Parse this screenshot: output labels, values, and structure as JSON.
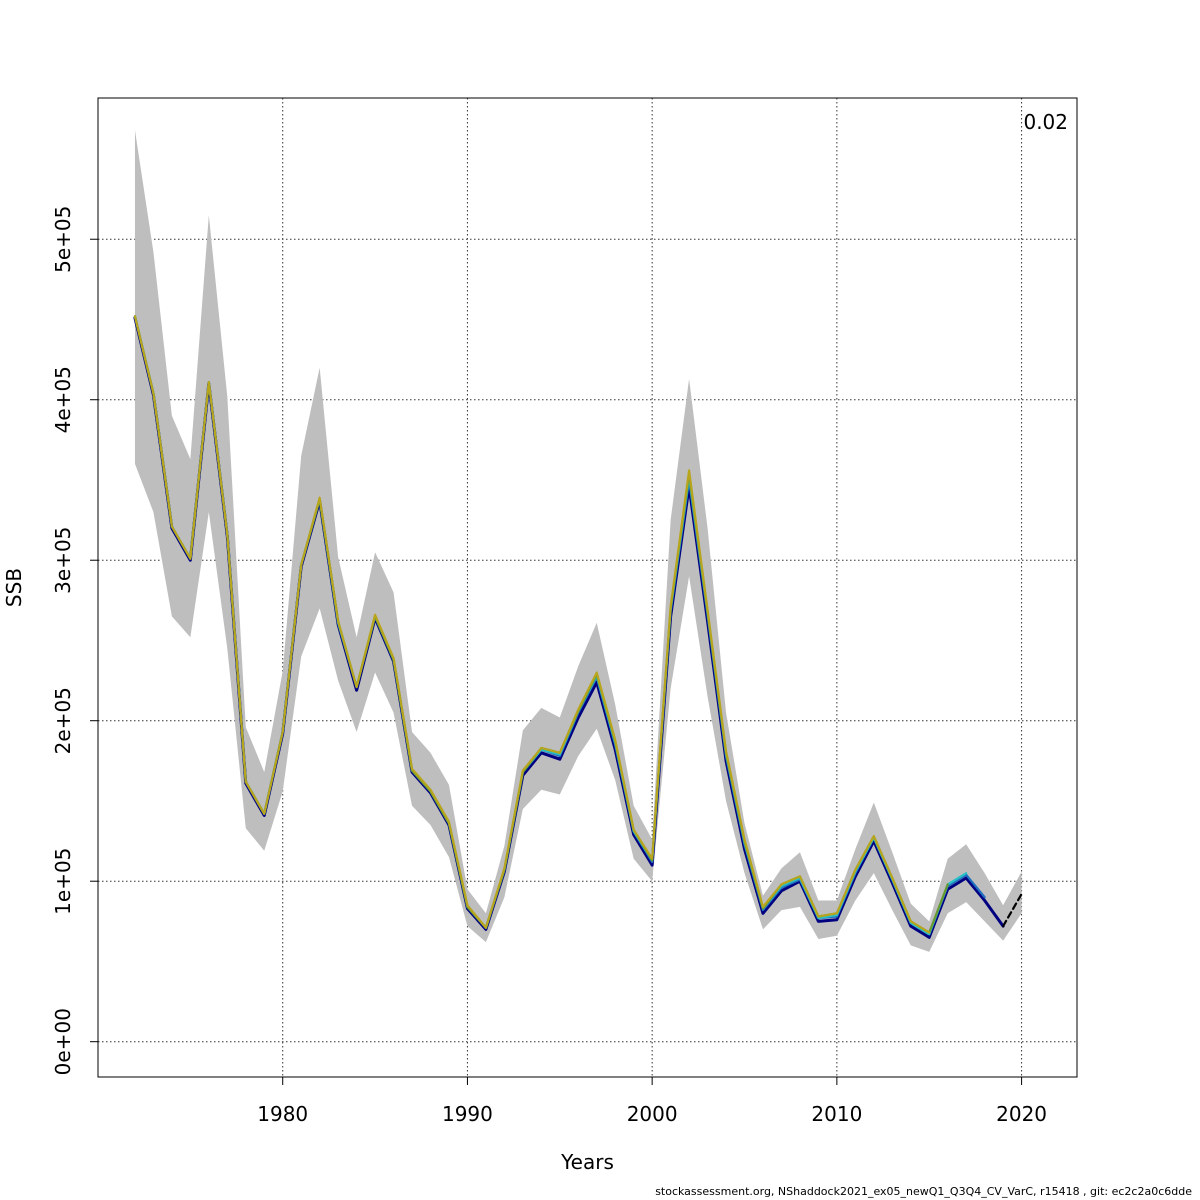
{
  "footer_text": "stockassessment.org, NShaddock2021_ex05_newQ1_Q3Q4_CV_VarC, r15418 , git: ec2c2a0c6dde",
  "chart_data": {
    "type": "line",
    "title": "",
    "xlabel": "Years",
    "ylabel": "SSB",
    "corner_label": "0.02",
    "xlim": [
      1970,
      2023
    ],
    "ylim": [
      -22000,
      588000
    ],
    "x_ticks": [
      1980,
      1990,
      2000,
      2010,
      2020
    ],
    "x_tick_labels": [
      "1980",
      "1990",
      "2000",
      "2010",
      "2020"
    ],
    "y_ticks": [
      0,
      100000,
      200000,
      300000,
      400000,
      500000
    ],
    "y_tick_labels": [
      "0e+00",
      "1e+05",
      "2e+05",
      "3e+05",
      "4e+05",
      "5e+05"
    ],
    "grid": true,
    "colors": {
      "band": "#bebebe",
      "main": "#000080",
      "retro": [
        "#1f6fc0",
        "#29c1c7",
        "#6a9a2f",
        "#b8a51e"
      ],
      "projection": "#000000"
    },
    "x": [
      1972,
      1973,
      1974,
      1975,
      1976,
      1977,
      1978,
      1979,
      1980,
      1981,
      1982,
      1983,
      1984,
      1985,
      1986,
      1987,
      1988,
      1989,
      1990,
      1991,
      1992,
      1993,
      1994,
      1995,
      1996,
      1997,
      1998,
      1999,
      2000,
      2001,
      2002,
      2003,
      2004,
      2005,
      2006,
      2007,
      2008,
      2009,
      2010,
      2011,
      2012,
      2013,
      2014,
      2015,
      2016,
      2017,
      2018,
      2019
    ],
    "ssb": [
      451000,
      403000,
      320000,
      300000,
      410000,
      315000,
      161000,
      141000,
      192000,
      296000,
      337000,
      260000,
      219000,
      264000,
      237000,
      168000,
      155000,
      135000,
      83000,
      70000,
      106000,
      166000,
      180000,
      176000,
      202000,
      224000,
      182000,
      129000,
      110000,
      265000,
      346000,
      262000,
      175000,
      120000,
      80000,
      94000,
      100000,
      75000,
      76000,
      103000,
      125000,
      99000,
      72000,
      65000,
      95000,
      102000,
      88000,
      72000
    ],
    "lower": [
      360000,
      330000,
      265000,
      252000,
      330000,
      245000,
      133000,
      119000,
      156000,
      240000,
      270000,
      225000,
      193000,
      230000,
      205000,
      147000,
      135000,
      115000,
      72000,
      62000,
      90000,
      145000,
      157000,
      154000,
      178000,
      195000,
      163000,
      114000,
      100000,
      220000,
      290000,
      215000,
      150000,
      105000,
      70000,
      82000,
      84000,
      64000,
      66000,
      88000,
      105000,
      82000,
      60000,
      56000,
      80000,
      87000,
      75000,
      63000
    ],
    "upper": [
      568000,
      492000,
      390000,
      363000,
      515000,
      402000,
      196000,
      168000,
      231000,
      365000,
      420000,
      302000,
      252000,
      305000,
      280000,
      193000,
      180000,
      160000,
      95000,
      80000,
      122000,
      194000,
      208000,
      202000,
      234000,
      261000,
      210000,
      147000,
      126000,
      325000,
      413000,
      320000,
      205000,
      136000,
      91000,
      108000,
      118000,
      88000,
      88000,
      120000,
      149000,
      118000,
      86000,
      75000,
      114000,
      123000,
      105000,
      85000
    ],
    "retro_series": [
      {
        "end_year": 2018,
        "values": [
          452000,
          404000,
          321000,
          301000,
          411000,
          316000,
          162000,
          142000,
          193000,
          297000,
          338000,
          261000,
          221000,
          265000,
          238000,
          169000,
          156000,
          136000,
          84000,
          71000,
          107000,
          168000,
          182000,
          178000,
          205000,
          227000,
          185000,
          131000,
          112000,
          268000,
          350000,
          266000,
          178000,
          123000,
          82000,
          96000,
          101000,
          77000,
          78000,
          105000,
          127000,
          101000,
          74000,
          67000,
          97000,
          104000,
          90000
        ]
      },
      {
        "end_year": 2017,
        "values": [
          452000,
          404000,
          321000,
          301000,
          411000,
          316000,
          162000,
          142000,
          193000,
          297000,
          338000,
          261000,
          221000,
          265000,
          238000,
          169000,
          156000,
          136000,
          84000,
          71000,
          107000,
          168000,
          182000,
          179000,
          206000,
          228000,
          186000,
          131000,
          113000,
          269000,
          352000,
          267000,
          179000,
          124000,
          83000,
          97000,
          102000,
          77000,
          79000,
          106000,
          127000,
          101000,
          74000,
          67000,
          98000,
          105000
        ]
      },
      {
        "end_year": 2016,
        "values": [
          452000,
          404000,
          321000,
          301000,
          411000,
          316000,
          162000,
          142000,
          193000,
          297000,
          338000,
          262000,
          221000,
          265000,
          238000,
          169000,
          156000,
          136000,
          84000,
          71000,
          107000,
          168000,
          183000,
          180000,
          206000,
          229000,
          187000,
          132000,
          113000,
          270000,
          354000,
          268000,
          180000,
          125000,
          83000,
          98000,
          103000,
          78000,
          80000,
          107000,
          128000,
          102000,
          75000,
          68000,
          98000
        ]
      },
      {
        "end_year": 2015,
        "values": [
          452000,
          404000,
          321000,
          301000,
          411000,
          316000,
          162000,
          142000,
          193000,
          297000,
          339000,
          262000,
          221000,
          266000,
          239000,
          170000,
          157000,
          137000,
          85000,
          71000,
          108000,
          169000,
          183000,
          180000,
          207000,
          230000,
          188000,
          132000,
          114000,
          271000,
          356000,
          269000,
          181000,
          126000,
          84000,
          98000,
          103000,
          78000,
          80000,
          107000,
          128000,
          102000,
          75000,
          68000
        ]
      }
    ],
    "projection": {
      "x": [
        2019,
        2020
      ],
      "values": [
        72000,
        92000
      ],
      "lower": [
        63000,
        80000
      ],
      "upper": [
        85000,
        106000
      ]
    }
  }
}
